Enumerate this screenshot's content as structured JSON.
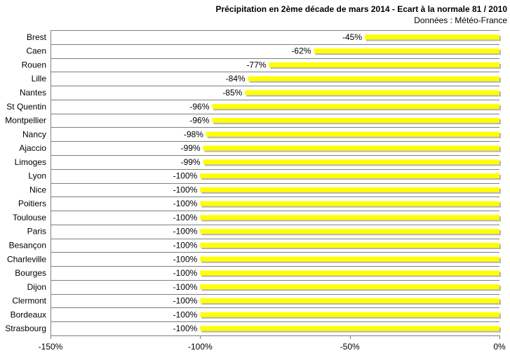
{
  "chart_data": {
    "type": "bar",
    "orientation": "horizontal",
    "title": "Précipitation en 2ème décade de mars 2014 - Ecart à la normale 81 / 2010",
    "subtitle": "Données : Météo-France",
    "categories": [
      "Brest",
      "Caen",
      "Rouen",
      "Lille",
      "Nantes",
      "St Quentin",
      "Montpellier",
      "Nancy",
      "Ajaccio",
      "Limoges",
      "Lyon",
      "Nice",
      "Poitiers",
      "Toulouse",
      "Paris",
      "Besançon",
      "Charleville",
      "Bourges",
      "Dijon",
      "Clermont",
      "Bordeaux",
      "Strasbourg"
    ],
    "values": [
      -45,
      -62,
      -77,
      -84,
      -85,
      -96,
      -96,
      -98,
      -99,
      -99,
      -100,
      -100,
      -100,
      -100,
      -100,
      -100,
      -100,
      -100,
      -100,
      -100,
      -100,
      -100
    ],
    "data_labels": [
      "-45%",
      "-62%",
      "-77%",
      "-84%",
      "-85%",
      "-96%",
      "-96%",
      "-98%",
      "-99%",
      "-99%",
      "-100%",
      "-100%",
      "-100%",
      "-100%",
      "-100%",
      "-100%",
      "-100%",
      "-100%",
      "-100%",
      "-100%",
      "-100%",
      "-100%"
    ],
    "xlim": [
      -150,
      0
    ],
    "x_ticks": [
      -150,
      -100,
      -50,
      0
    ],
    "x_tick_labels": [
      "-150%",
      "-100%",
      "-50%",
      "0%"
    ],
    "grid": true,
    "colors": {
      "bar": "#ffff00",
      "bar_shadow": "#b4b4b4",
      "grid": "#7f7f7f",
      "axis": "#7f7f7f"
    }
  }
}
